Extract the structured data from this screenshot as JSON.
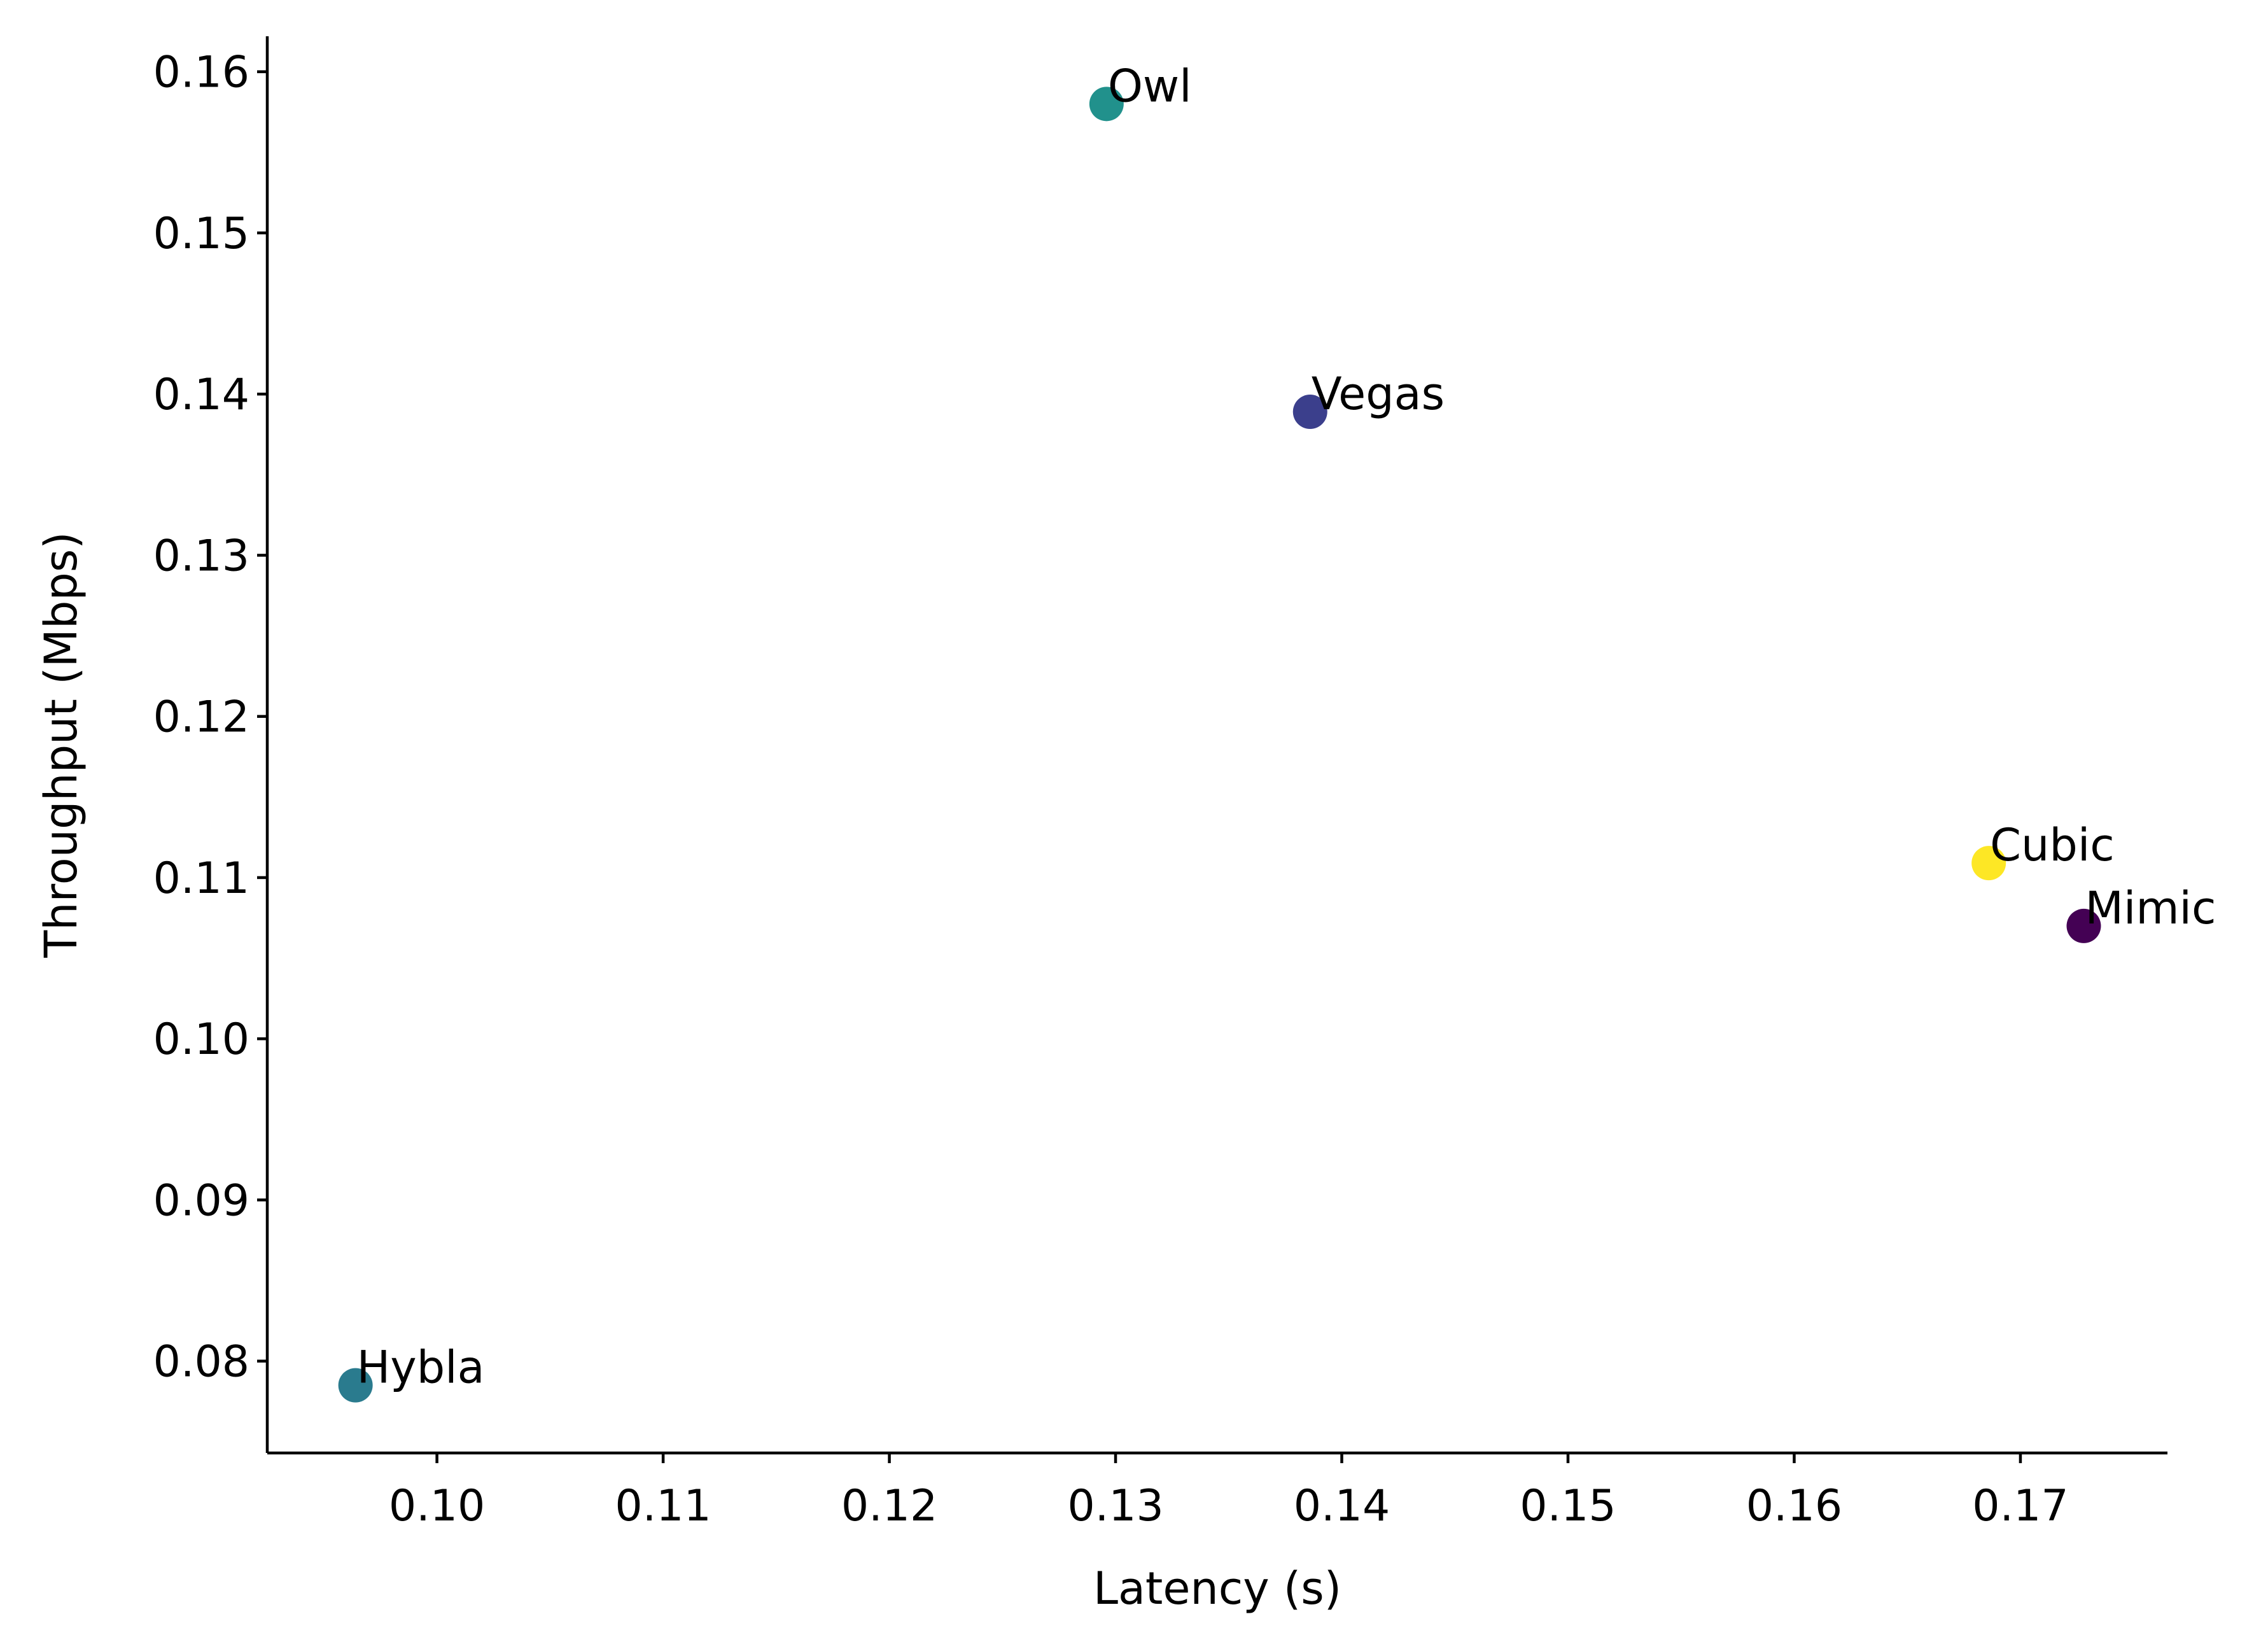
{
  "chart_data": {
    "type": "scatter",
    "title": "",
    "xlabel": "Latency (s)",
    "ylabel": "Throughput (Mbps)",
    "xlim": [
      0.0925,
      0.1765
    ],
    "ylim": [
      0.0743,
      0.1622
    ],
    "x_ticks": [
      "0.10",
      "0.11",
      "0.12",
      "0.13",
      "0.14",
      "0.15",
      "0.16",
      "0.17"
    ],
    "y_ticks": [
      "0.08",
      "0.09",
      "0.10",
      "0.11",
      "0.12",
      "0.13",
      "0.14",
      "0.15",
      "0.16"
    ],
    "grid": false,
    "legend": "none",
    "points": [
      {
        "label": "Mimic",
        "x": 0.1728,
        "y": 0.107,
        "color": "#440154"
      },
      {
        "label": "Vegas",
        "x": 0.1386,
        "y": 0.1389,
        "color": "#3b3f8c"
      },
      {
        "label": "Hybla",
        "x": 0.0964,
        "y": 0.0785,
        "color": "#2a7b8e"
      },
      {
        "label": "Owl",
        "x": 0.1296,
        "y": 0.158,
        "color": "#21918c"
      },
      {
        "label": "Cubic",
        "x": 0.1686,
        "y": 0.1109,
        "color": "#fde725"
      }
    ]
  }
}
